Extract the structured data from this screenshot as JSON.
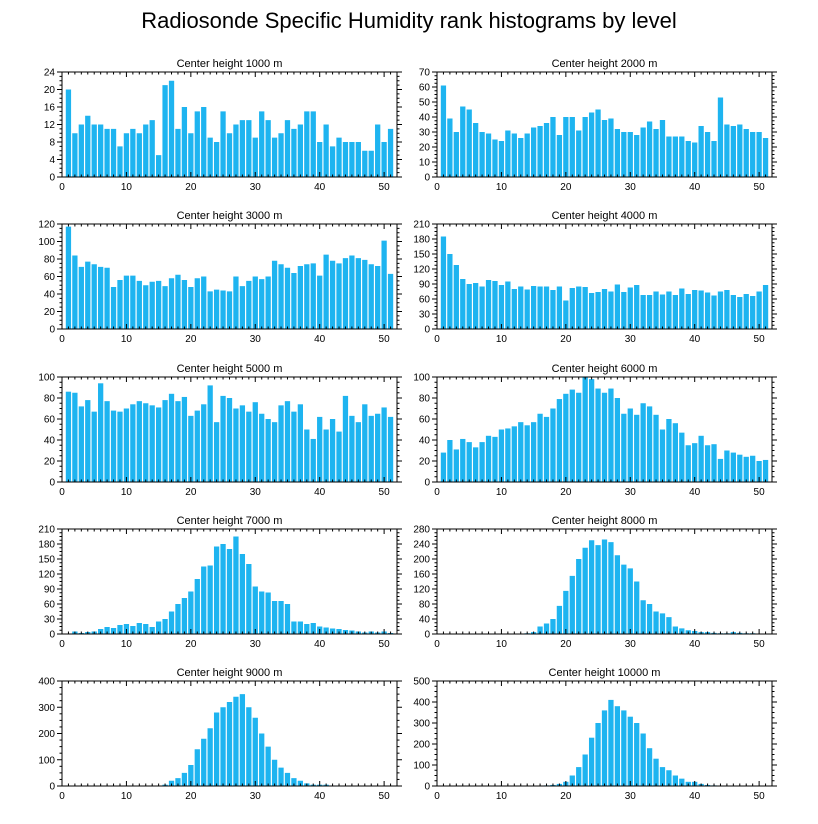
{
  "title": "Radiosonde Specific Humidity rank histograms by level",
  "bar_color": "#1eb4f0",
  "chart_data": [
    {
      "type": "bar",
      "title": "Center height 1000 m",
      "xticks": [
        0,
        10,
        20,
        30,
        40,
        50
      ],
      "ylim": [
        0,
        24
      ],
      "yticks": [
        0,
        4,
        8,
        12,
        16,
        20,
        24
      ],
      "values": [
        20,
        10,
        12,
        14,
        12,
        12,
        11,
        11,
        7,
        10,
        11,
        10,
        12,
        13,
        5,
        21,
        22,
        11,
        16,
        10,
        15,
        16,
        9,
        8,
        15,
        10,
        12,
        13,
        13,
        9,
        15,
        13,
        9,
        10,
        13,
        11,
        12,
        15,
        15,
        8,
        12,
        7,
        9,
        8,
        8,
        8,
        6,
        6,
        12,
        8,
        11
      ]
    },
    {
      "type": "bar",
      "title": "Center height 2000 m",
      "xticks": [
        0,
        10,
        20,
        30,
        40,
        50
      ],
      "ylim": [
        0,
        70
      ],
      "yticks": [
        0,
        10,
        20,
        30,
        40,
        50,
        60,
        70
      ],
      "values": [
        61,
        39,
        30,
        47,
        45,
        36,
        30,
        29,
        25,
        24,
        31,
        29,
        26,
        29,
        33,
        34,
        36,
        40,
        28,
        40,
        40,
        31,
        40,
        43,
        45,
        38,
        39,
        32,
        30,
        30,
        28,
        33,
        37,
        32,
        38,
        27,
        27,
        27,
        24,
        23,
        34,
        30,
        24,
        53,
        35,
        34,
        35,
        32,
        30,
        30,
        26
      ]
    },
    {
      "type": "bar",
      "title": "Center height 3000 m",
      "xticks": [
        0,
        10,
        20,
        30,
        40,
        50
      ],
      "ylim": [
        0,
        120
      ],
      "yticks": [
        0,
        20,
        40,
        60,
        80,
        100,
        120
      ],
      "values": [
        117,
        84,
        71,
        77,
        74,
        71,
        70,
        48,
        56,
        61,
        61,
        55,
        50,
        54,
        55,
        49,
        58,
        62,
        56,
        48,
        58,
        60,
        43,
        45,
        44,
        43,
        60,
        49,
        55,
        60,
        57,
        60,
        78,
        74,
        70,
        64,
        72,
        74,
        75,
        61,
        85,
        78,
        75,
        81,
        84,
        81,
        79,
        74,
        72,
        101,
        63
      ]
    },
    {
      "type": "bar",
      "title": "Center height 4000 m",
      "xticks": [
        0,
        10,
        20,
        30,
        40,
        50
      ],
      "ylim": [
        0,
        210
      ],
      "yticks": [
        0,
        30,
        60,
        90,
        120,
        150,
        180,
        210
      ],
      "values": [
        185,
        150,
        128,
        100,
        90,
        92,
        85,
        98,
        96,
        88,
        95,
        80,
        85,
        79,
        86,
        85,
        85,
        78,
        85,
        57,
        82,
        85,
        84,
        72,
        74,
        80,
        75,
        89,
        74,
        83,
        88,
        68,
        68,
        75,
        69,
        75,
        68,
        81,
        70,
        78,
        77,
        73,
        67,
        75,
        78,
        68,
        64,
        70,
        66,
        75,
        88
      ]
    },
    {
      "type": "bar",
      "title": "Center height 5000 m",
      "xticks": [
        0,
        10,
        20,
        30,
        40,
        50
      ],
      "ylim": [
        0,
        100
      ],
      "yticks": [
        0,
        20,
        40,
        60,
        80,
        100
      ],
      "values": [
        86,
        85,
        72,
        78,
        67,
        94,
        77,
        68,
        67,
        70,
        74,
        77,
        75,
        73,
        71,
        78,
        84,
        77,
        81,
        63,
        68,
        74,
        92,
        57,
        82,
        80,
        70,
        73,
        67,
        76,
        65,
        60,
        57,
        73,
        77,
        67,
        74,
        50,
        41,
        62,
        50,
        60,
        48,
        82,
        63,
        57,
        74,
        63,
        65,
        71,
        62
      ]
    },
    {
      "type": "bar",
      "title": "Center height 6000 m",
      "xticks": [
        0,
        10,
        20,
        30,
        40,
        50
      ],
      "ylim": [
        0,
        100
      ],
      "yticks": [
        0,
        20,
        40,
        60,
        80,
        100
      ],
      "values": [
        28,
        40,
        31,
        41,
        38,
        33,
        38,
        44,
        43,
        50,
        51,
        53,
        57,
        54,
        57,
        65,
        62,
        70,
        79,
        84,
        88,
        85,
        100,
        98,
        89,
        85,
        89,
        80,
        65,
        70,
        64,
        75,
        72,
        64,
        50,
        60,
        56,
        47,
        35,
        37,
        44,
        35,
        36,
        22,
        30,
        28,
        26,
        24,
        25,
        20,
        21
      ]
    },
    {
      "type": "bar",
      "title": "Center height 7000 m",
      "xticks": [
        0,
        10,
        20,
        30,
        40,
        50
      ],
      "ylim": [
        0,
        210
      ],
      "yticks": [
        0,
        30,
        60,
        90,
        120,
        150,
        180,
        210
      ],
      "values": [
        0,
        5,
        2,
        4,
        5,
        10,
        14,
        12,
        18,
        20,
        16,
        22,
        20,
        14,
        25,
        30,
        45,
        60,
        72,
        85,
        110,
        135,
        137,
        175,
        180,
        170,
        195,
        160,
        140,
        95,
        85,
        83,
        66,
        66,
        60,
        25,
        25,
        20,
        22,
        15,
        13,
        11,
        10,
        8,
        7,
        5,
        3,
        5,
        3,
        5,
        2
      ]
    },
    {
      "type": "bar",
      "title": "Center height 8000 m",
      "xticks": [
        0,
        10,
        20,
        30,
        40,
        50
      ],
      "ylim": [
        0,
        280
      ],
      "yticks": [
        0,
        40,
        80,
        120,
        160,
        200,
        240,
        280
      ],
      "values": [
        0,
        0,
        0,
        0,
        0,
        0,
        0,
        0,
        0,
        0,
        0,
        0,
        0,
        2,
        5,
        20,
        28,
        40,
        75,
        115,
        155,
        200,
        230,
        250,
        237,
        252,
        245,
        210,
        185,
        175,
        140,
        90,
        80,
        60,
        55,
        45,
        20,
        15,
        10,
        8,
        5,
        5,
        3,
        2,
        2,
        5,
        3,
        2,
        2,
        0,
        0
      ]
    },
    {
      "type": "bar",
      "title": "Center height 9000 m",
      "xticks": [
        0,
        10,
        20,
        30,
        40,
        50
      ],
      "ylim": [
        0,
        400
      ],
      "yticks": [
        0,
        100,
        200,
        300,
        400
      ],
      "values": [
        0,
        0,
        0,
        0,
        0,
        0,
        0,
        0,
        0,
        0,
        0,
        0,
        0,
        0,
        0,
        5,
        20,
        30,
        50,
        80,
        140,
        180,
        220,
        280,
        300,
        320,
        340,
        350,
        300,
        260,
        200,
        150,
        100,
        70,
        50,
        30,
        20,
        10,
        5,
        5,
        5,
        2,
        0,
        0,
        0,
        0,
        0,
        0,
        0,
        0,
        0
      ]
    },
    {
      "type": "bar",
      "title": "Center height 10000 m",
      "xticks": [
        0,
        10,
        20,
        30,
        40,
        50
      ],
      "ylim": [
        0,
        500
      ],
      "yticks": [
        0,
        100,
        200,
        300,
        400,
        500
      ],
      "values": [
        0,
        0,
        0,
        0,
        0,
        0,
        0,
        0,
        0,
        0,
        0,
        0,
        0,
        0,
        0,
        0,
        3,
        5,
        10,
        20,
        50,
        90,
        150,
        230,
        300,
        360,
        410,
        380,
        360,
        330,
        300,
        250,
        180,
        130,
        90,
        75,
        50,
        35,
        20,
        20,
        10,
        5,
        3,
        2,
        1,
        0,
        0,
        0,
        0,
        0,
        0
      ]
    }
  ]
}
